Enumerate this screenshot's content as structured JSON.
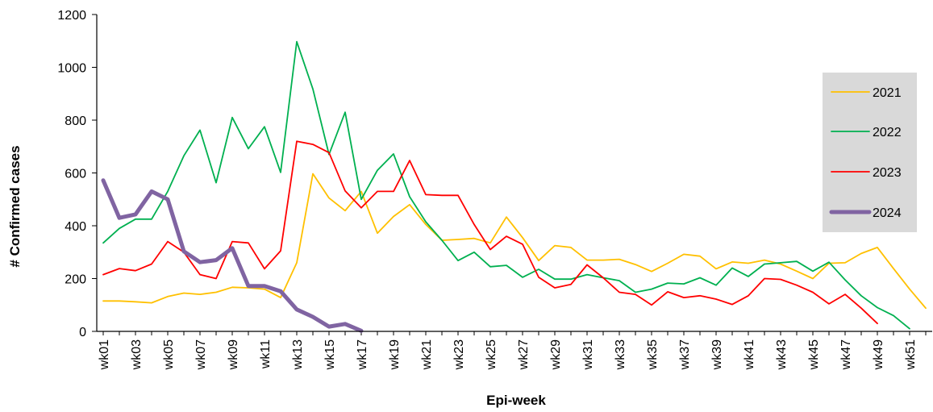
{
  "chart_data": {
    "type": "line",
    "title": "",
    "xlabel": "Epi-week",
    "ylabel": "# Confirmed cases",
    "ylim": [
      0,
      1200
    ],
    "yticks": [
      0,
      200,
      400,
      600,
      800,
      1000,
      1200
    ],
    "x": [
      "wk01",
      "wk02",
      "wk03",
      "wk04",
      "wk05",
      "wk06",
      "wk07",
      "wk08",
      "wk09",
      "wk10",
      "wk11",
      "wk12",
      "wk13",
      "wk14",
      "wk15",
      "wk16",
      "wk17",
      "wk18",
      "wk19",
      "wk20",
      "wk21",
      "wk22",
      "wk23",
      "wk24",
      "wk25",
      "wk26",
      "wk27",
      "wk28",
      "wk29",
      "wk30",
      "wk31",
      "wk32",
      "wk33",
      "wk34",
      "wk35",
      "wk36",
      "wk37",
      "wk38",
      "wk39",
      "wk40",
      "wk41",
      "wk42",
      "wk43",
      "wk44",
      "wk45",
      "wk46",
      "wk47",
      "wk48",
      "wk49",
      "wk50",
      "wk51",
      "wk52"
    ],
    "xtick_labels": [
      "wk01",
      "wk03",
      "wk05",
      "wk07",
      "wk09",
      "wk11",
      "wk13",
      "wk15",
      "wk17",
      "wk19",
      "wk21",
      "wk23",
      "wk25",
      "wk27",
      "wk29",
      "wk31",
      "wk33",
      "wk35",
      "wk37",
      "wk39",
      "wk41",
      "wk43",
      "wk45",
      "wk47",
      "wk49",
      "wk51"
    ],
    "grid": false,
    "legend_position": "right",
    "series": [
      {
        "name": "2021",
        "color": "#FFC000",
        "values": [
          115,
          115,
          112,
          108,
          132,
          145,
          140,
          148,
          167,
          165,
          160,
          128,
          260,
          597,
          505,
          457,
          530,
          372,
          435,
          480,
          405,
          345,
          348,
          352,
          335,
          433,
          355,
          268,
          325,
          318,
          270,
          270,
          273,
          253,
          227,
          258,
          292,
          285,
          237,
          263,
          258,
          270,
          255,
          228,
          200,
          258,
          260,
          295,
          318,
          238,
          160,
          88
        ]
      },
      {
        "name": "2022",
        "color": "#00B050",
        "values": [
          335,
          390,
          425,
          425,
          530,
          665,
          762,
          563,
          810,
          692,
          775,
          602,
          1097,
          918,
          670,
          830,
          500,
          610,
          672,
          510,
          415,
          345,
          268,
          300,
          245,
          250,
          205,
          235,
          198,
          198,
          215,
          203,
          192,
          148,
          160,
          183,
          180,
          203,
          175,
          240,
          208,
          255,
          260,
          265,
          228,
          262,
          195,
          135,
          90,
          60,
          10,
          null
        ]
      },
      {
        "name": "2023",
        "color": "#FF0000",
        "values": [
          215,
          238,
          230,
          255,
          340,
          300,
          215,
          200,
          340,
          335,
          237,
          305,
          720,
          708,
          677,
          532,
          468,
          530,
          530,
          647,
          518,
          515,
          515,
          405,
          310,
          360,
          330,
          205,
          165,
          178,
          252,
          203,
          148,
          140,
          100,
          150,
          128,
          135,
          122,
          102,
          135,
          200,
          197,
          175,
          148,
          104,
          140,
          88,
          30,
          null,
          null,
          null
        ]
      },
      {
        "name": "2024",
        "color": "#8064A2",
        "values": [
          572,
          430,
          443,
          530,
          500,
          303,
          262,
          270,
          315,
          172,
          172,
          152,
          83,
          55,
          18,
          28,
          2,
          null,
          null,
          null,
          null,
          null,
          null,
          null,
          null,
          null,
          null,
          null,
          null,
          null,
          null,
          null,
          null,
          null,
          null,
          null,
          null,
          null,
          null,
          null,
          null,
          null,
          null,
          null,
          null,
          null,
          null,
          null,
          null,
          null,
          null,
          null
        ]
      }
    ]
  }
}
